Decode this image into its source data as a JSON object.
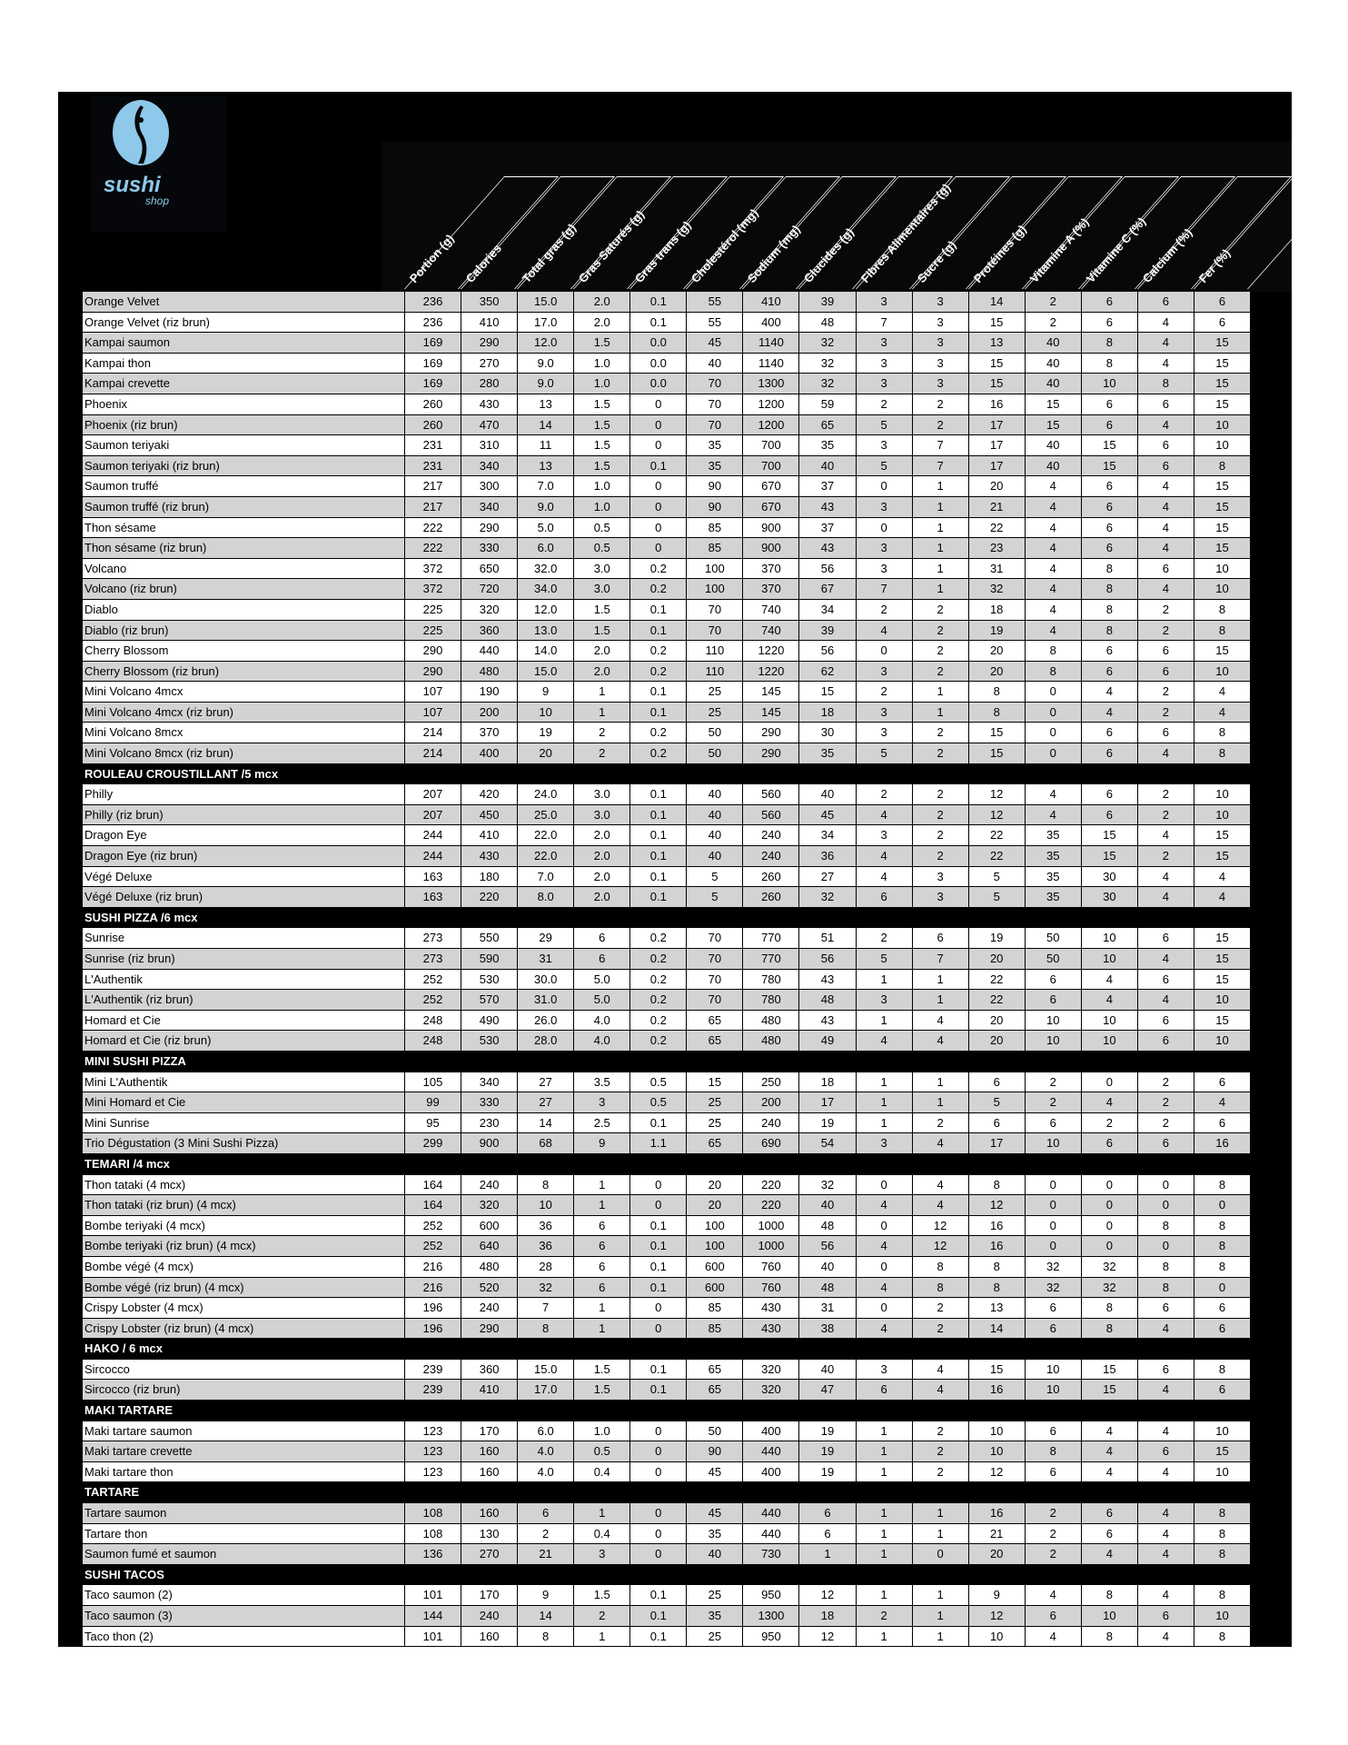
{
  "logo": {
    "brand_line1": "sushi",
    "brand_line2": "shop",
    "color": "#8ec8ea"
  },
  "columns": [
    "Portion (g)",
    "Calories",
    "Total gras (g)",
    "Gras Saturés (g)",
    "Gras trans (g)",
    "Cholestérol (mg)",
    "Sodium (mg)",
    "Glucides (g)",
    "Fibres Alimentaires (g)",
    "Sucre (g)",
    "Protéines (g)",
    "Vitamine A (%)",
    "Vitamine C (%)",
    "Calcium (%)",
    "Fer (%)"
  ],
  "colors": {
    "row_shaded": "#d3d3d3",
    "row_plain": "#ffffff",
    "background": "#000000"
  },
  "sections": [
    {
      "title": "",
      "first_shaded": true,
      "rows": [
        [
          "Orange Velvet",
          "236",
          "350",
          "15.0",
          "2.0",
          "0.1",
          "55",
          "410",
          "39",
          "3",
          "3",
          "14",
          "2",
          "6",
          "6",
          "6"
        ],
        [
          "Orange Velvet (riz brun)",
          "236",
          "410",
          "17.0",
          "2.0",
          "0.1",
          "55",
          "400",
          "48",
          "7",
          "3",
          "15",
          "2",
          "6",
          "4",
          "6"
        ],
        [
          "Kampai saumon",
          "169",
          "290",
          "12.0",
          "1.5",
          "0.0",
          "45",
          "1140",
          "32",
          "3",
          "3",
          "13",
          "40",
          "8",
          "4",
          "15"
        ],
        [
          "Kampai thon",
          "169",
          "270",
          "9.0",
          "1.0",
          "0.0",
          "40",
          "1140",
          "32",
          "3",
          "3",
          "15",
          "40",
          "8",
          "4",
          "15"
        ],
        [
          "Kampai crevette",
          "169",
          "280",
          "9.0",
          "1.0",
          "0.0",
          "70",
          "1300",
          "32",
          "3",
          "3",
          "15",
          "40",
          "10",
          "8",
          "15"
        ],
        [
          "Phoenix",
          "260",
          "430",
          "13",
          "1.5",
          "0",
          "70",
          "1200",
          "59",
          "2",
          "2",
          "16",
          "15",
          "6",
          "6",
          "15"
        ],
        [
          "Phoenix (riz brun)",
          "260",
          "470",
          "14",
          "1.5",
          "0",
          "70",
          "1200",
          "65",
          "5",
          "2",
          "17",
          "15",
          "6",
          "4",
          "10"
        ],
        [
          "Saumon teriyaki",
          "231",
          "310",
          "11",
          "1.5",
          "0",
          "35",
          "700",
          "35",
          "3",
          "7",
          "17",
          "40",
          "15",
          "6",
          "10"
        ],
        [
          "Saumon teriyaki (riz brun)",
          "231",
          "340",
          "13",
          "1.5",
          "0.1",
          "35",
          "700",
          "40",
          "5",
          "7",
          "17",
          "40",
          "15",
          "6",
          "8"
        ],
        [
          "Saumon truffé",
          "217",
          "300",
          "7.0",
          "1.0",
          "0",
          "90",
          "670",
          "37",
          "0",
          "1",
          "20",
          "4",
          "6",
          "4",
          "15"
        ],
        [
          "Saumon truffé  (riz brun)",
          "217",
          "340",
          "9.0",
          "1.0",
          "0",
          "90",
          "670",
          "43",
          "3",
          "1",
          "21",
          "4",
          "6",
          "4",
          "15"
        ],
        [
          "Thon sésame",
          "222",
          "290",
          "5.0",
          "0.5",
          "0",
          "85",
          "900",
          "37",
          "0",
          "1",
          "22",
          "4",
          "6",
          "4",
          "15"
        ],
        [
          "Thon sésame (riz brun)",
          "222",
          "330",
          "6.0",
          "0.5",
          "0",
          "85",
          "900",
          "43",
          "3",
          "1",
          "23",
          "4",
          "6",
          "4",
          "15"
        ],
        [
          "Volcano",
          "372",
          "650",
          "32.0",
          "3.0",
          "0.2",
          "100",
          "370",
          "56",
          "3",
          "1",
          "31",
          "4",
          "8",
          "6",
          "10"
        ],
        [
          "Volcano (riz brun)",
          "372",
          "720",
          "34.0",
          "3.0",
          "0.2",
          "100",
          "370",
          "67",
          "7",
          "1",
          "32",
          "4",
          "8",
          "4",
          "10"
        ],
        [
          "Diablo",
          "225",
          "320",
          "12.0",
          "1.5",
          "0.1",
          "70",
          "740",
          "34",
          "2",
          "2",
          "18",
          "4",
          "8",
          "2",
          "8"
        ],
        [
          "Diablo (riz brun)",
          "225",
          "360",
          "13.0",
          "1.5",
          "0.1",
          "70",
          "740",
          "39",
          "4",
          "2",
          "19",
          "4",
          "8",
          "2",
          "8"
        ],
        [
          "Cherry Blossom",
          "290",
          "440",
          "14.0",
          "2.0",
          "0.2",
          "110",
          "1220",
          "56",
          "0",
          "2",
          "20",
          "8",
          "6",
          "6",
          "15"
        ],
        [
          "Cherry Blossom (riz brun)",
          "290",
          "480",
          "15.0",
          "2.0",
          "0.2",
          "110",
          "1220",
          "62",
          "3",
          "2",
          "20",
          "8",
          "6",
          "6",
          "10"
        ],
        [
          "Mini Volcano 4mcx",
          "107",
          "190",
          "9",
          "1",
          "0.1",
          "25",
          "145",
          "15",
          "2",
          "1",
          "8",
          "0",
          "4",
          "2",
          "4"
        ],
        [
          "Mini Volcano 4mcx (riz brun)",
          "107",
          "200",
          "10",
          "1",
          "0.1",
          "25",
          "145",
          "18",
          "3",
          "1",
          "8",
          "0",
          "4",
          "2",
          "4"
        ],
        [
          "Mini Volcano 8mcx",
          "214",
          "370",
          "19",
          "2",
          "0.2",
          "50",
          "290",
          "30",
          "3",
          "2",
          "15",
          "0",
          "6",
          "6",
          "8"
        ],
        [
          "Mini Volcano 8mcx (riz brun)",
          "214",
          "400",
          "20",
          "2",
          "0.2",
          "50",
          "290",
          "35",
          "5",
          "2",
          "15",
          "0",
          "6",
          "4",
          "8"
        ]
      ]
    },
    {
      "title": "ROULEAU CROUSTILLANT /5 mcx",
      "first_shaded": false,
      "rows": [
        [
          "Philly",
          "207",
          "420",
          "24.0",
          "3.0",
          "0.1",
          "40",
          "560",
          "40",
          "2",
          "2",
          "12",
          "4",
          "6",
          "2",
          "10"
        ],
        [
          "Philly (riz brun)",
          "207",
          "450",
          "25.0",
          "3.0",
          "0.1",
          "40",
          "560",
          "45",
          "4",
          "2",
          "12",
          "4",
          "6",
          "2",
          "10"
        ],
        [
          "Dragon Eye",
          "244",
          "410",
          "22.0",
          "2.0",
          "0.1",
          "40",
          "240",
          "34",
          "3",
          "2",
          "22",
          "35",
          "15",
          "4",
          "15"
        ],
        [
          "Dragon Eye (riz brun)",
          "244",
          "430",
          "22.0",
          "2.0",
          "0.1",
          "40",
          "240",
          "36",
          "4",
          "2",
          "22",
          "35",
          "15",
          "2",
          "15"
        ],
        [
          "Végé Deluxe",
          "163",
          "180",
          "7.0",
          "2.0",
          "0.1",
          "5",
          "260",
          "27",
          "4",
          "3",
          "5",
          "35",
          "30",
          "4",
          "4"
        ],
        [
          "Végé Deluxe (riz brun)",
          "163",
          "220",
          "8.0",
          "2.0",
          "0.1",
          "5",
          "260",
          "32",
          "6",
          "3",
          "5",
          "35",
          "30",
          "4",
          "4"
        ]
      ]
    },
    {
      "title": "SUSHI PIZZA /6 mcx",
      "first_shaded": false,
      "rows": [
        [
          "Sunrise",
          "273",
          "550",
          "29",
          "6",
          "0.2",
          "70",
          "770",
          "51",
          "2",
          "6",
          "19",
          "50",
          "10",
          "6",
          "15"
        ],
        [
          "Sunrise (riz brun)",
          "273",
          "590",
          "31",
          "6",
          "0.2",
          "70",
          "770",
          "56",
          "5",
          "7",
          "20",
          "50",
          "10",
          "4",
          "15"
        ],
        [
          "L'Authentik",
          "252",
          "530",
          "30.0",
          "5.0",
          "0.2",
          "70",
          "780",
          "43",
          "1",
          "1",
          "22",
          "6",
          "4",
          "6",
          "15"
        ],
        [
          "L'Authentik (riz brun)",
          "252",
          "570",
          "31.0",
          "5.0",
          "0.2",
          "70",
          "780",
          "48",
          "3",
          "1",
          "22",
          "6",
          "4",
          "4",
          "10"
        ],
        [
          "Homard et Cie",
          "248",
          "490",
          "26.0",
          "4.0",
          "0.2",
          "65",
          "480",
          "43",
          "1",
          "4",
          "20",
          "10",
          "10",
          "6",
          "15"
        ],
        [
          "Homard et Cie (riz brun)",
          "248",
          "530",
          "28.0",
          "4.0",
          "0.2",
          "65",
          "480",
          "49",
          "4",
          "4",
          "20",
          "10",
          "10",
          "6",
          "10"
        ]
      ]
    },
    {
      "title": "MINI SUSHI PIZZA",
      "first_shaded": false,
      "rows": [
        [
          "Mini L'Authentik",
          "105",
          "340",
          "27",
          "3.5",
          "0.5",
          "15",
          "250",
          "18",
          "1",
          "1",
          "6",
          "2",
          "0",
          "2",
          "6"
        ],
        [
          "Mini Homard et Cie",
          "99",
          "330",
          "27",
          "3",
          "0.5",
          "25",
          "200",
          "17",
          "1",
          "1",
          "5",
          "2",
          "4",
          "2",
          "4"
        ],
        [
          "Mini Sunrise",
          "95",
          "230",
          "14",
          "2.5",
          "0.1",
          "25",
          "240",
          "19",
          "1",
          "2",
          "6",
          "6",
          "2",
          "2",
          "6"
        ],
        [
          "Trio Dégustation (3 Mini Sushi Pizza)",
          "299",
          "900",
          "68",
          "9",
          "1.1",
          "65",
          "690",
          "54",
          "3",
          "4",
          "17",
          "10",
          "6",
          "6",
          "16"
        ]
      ]
    },
    {
      "title": "TEMARI /4 mcx",
      "first_shaded": false,
      "rows": [
        [
          "Thon tataki (4 mcx)",
          "164",
          "240",
          "8",
          "1",
          "0",
          "20",
          "220",
          "32",
          "0",
          "4",
          "8",
          "0",
          "0",
          "0",
          "8"
        ],
        [
          "Thon tataki (riz brun) (4 mcx)",
          "164",
          "320",
          "10",
          "1",
          "0",
          "20",
          "220",
          "40",
          "4",
          "4",
          "12",
          "0",
          "0",
          "0",
          "0"
        ],
        [
          "Bombe teriyaki (4 mcx)",
          "252",
          "600",
          "36",
          "6",
          "0.1",
          "100",
          "1000",
          "48",
          "0",
          "12",
          "16",
          "0",
          "0",
          "8",
          "8"
        ],
        [
          "Bombe teriyaki (riz brun) (4 mcx)",
          "252",
          "640",
          "36",
          "6",
          "0.1",
          "100",
          "1000",
          "56",
          "4",
          "12",
          "16",
          "0",
          "0",
          "0",
          "8"
        ],
        [
          "Bombe végé (4 mcx)",
          "216",
          "480",
          "28",
          "6",
          "0.1",
          "600",
          "760",
          "40",
          "0",
          "8",
          "8",
          "32",
          "32",
          "8",
          "8"
        ],
        [
          "Bombe végé (riz brun) (4 mcx)",
          "216",
          "520",
          "32",
          "6",
          "0.1",
          "600",
          "760",
          "48",
          "4",
          "8",
          "8",
          "32",
          "32",
          "8",
          "0"
        ],
        [
          "Crispy Lobster (4 mcx)",
          "196",
          "240",
          "7",
          "1",
          "0",
          "85",
          "430",
          "31",
          "0",
          "2",
          "13",
          "6",
          "8",
          "6",
          "6"
        ],
        [
          "Crispy Lobster (riz brun) (4 mcx)",
          "196",
          "290",
          "8",
          "1",
          "0",
          "85",
          "430",
          "38",
          "4",
          "2",
          "14",
          "6",
          "8",
          "4",
          "6"
        ]
      ]
    },
    {
      "title": "HAKO / 6 mcx",
      "first_shaded": false,
      "rows": [
        [
          "Sircocco",
          "239",
          "360",
          "15.0",
          "1.5",
          "0.1",
          "65",
          "320",
          "40",
          "3",
          "4",
          "15",
          "10",
          "15",
          "6",
          "8"
        ],
        [
          "Sircocco  (riz brun)",
          "239",
          "410",
          "17.0",
          "1.5",
          "0.1",
          "65",
          "320",
          "47",
          "6",
          "4",
          "16",
          "10",
          "15",
          "4",
          "6"
        ]
      ]
    },
    {
      "title": "MAKI TARTARE",
      "first_shaded": false,
      "rows": [
        [
          "Maki tartare saumon",
          "123",
          "170",
          "6.0",
          "1.0",
          "0",
          "50",
          "400",
          "19",
          "1",
          "2",
          "10",
          "6",
          "4",
          "4",
          "10"
        ],
        [
          "Maki tartare crevette",
          "123",
          "160",
          "4.0",
          "0.5",
          "0",
          "90",
          "440",
          "19",
          "1",
          "2",
          "10",
          "8",
          "4",
          "6",
          "15"
        ],
        [
          "Maki tartare thon",
          "123",
          "160",
          "4.0",
          "0.4",
          "0",
          "45",
          "400",
          "19",
          "1",
          "2",
          "12",
          "6",
          "4",
          "4",
          "10"
        ]
      ]
    },
    {
      "title": "TARTARE",
      "first_shaded": true,
      "rows": [
        [
          "Tartare saumon",
          "108",
          "160",
          "6",
          "1",
          "0",
          "45",
          "440",
          "6",
          "1",
          "1",
          "16",
          "2",
          "6",
          "4",
          "8"
        ],
        [
          "Tartare thon",
          "108",
          "130",
          "2",
          "0.4",
          "0",
          "35",
          "440",
          "6",
          "1",
          "1",
          "21",
          "2",
          "6",
          "4",
          "8"
        ],
        [
          "Saumon fumé et saumon",
          "136",
          "270",
          "21",
          "3",
          "0",
          "40",
          "730",
          "1",
          "1",
          "0",
          "20",
          "2",
          "4",
          "4",
          "8"
        ]
      ]
    },
    {
      "title": "SUSHI TACOS",
      "first_shaded": false,
      "rows": [
        [
          "Taco saumon (2)",
          "101",
          "170",
          "9",
          "1.5",
          "0.1",
          "25",
          "950",
          "12",
          "1",
          "1",
          "9",
          "4",
          "8",
          "4",
          "8"
        ],
        [
          "Taco saumon (3)",
          "144",
          "240",
          "14",
          "2",
          "0.1",
          "35",
          "1300",
          "18",
          "2",
          "1",
          "12",
          "6",
          "10",
          "6",
          "10"
        ],
        [
          "Taco thon (2)",
          "101",
          "160",
          "8",
          "1",
          "0.1",
          "25",
          "950",
          "12",
          "1",
          "1",
          "10",
          "4",
          "8",
          "4",
          "8"
        ]
      ]
    }
  ]
}
